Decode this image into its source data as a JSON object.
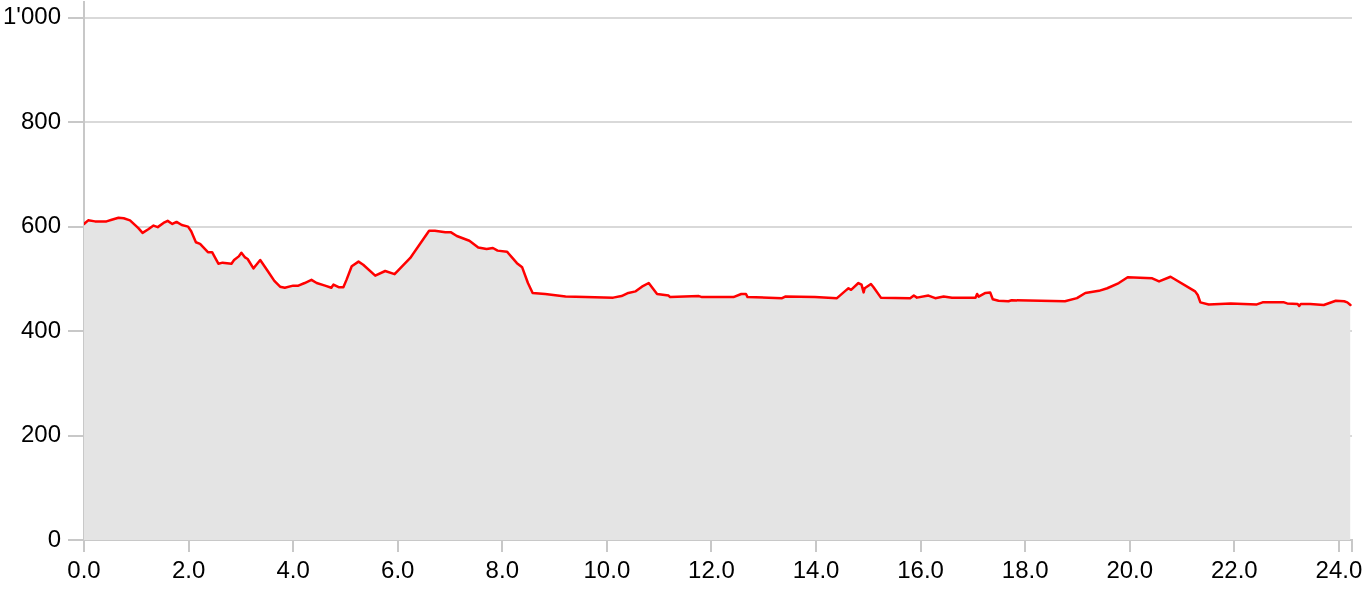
{
  "chart_data": {
    "type": "area",
    "color": "#ff0000",
    "marker": "none",
    "grid": "y",
    "xlim": [
      0,
      24.25
    ],
    "ylim": [
      0,
      1030
    ],
    "xticks": [
      {
        "value": 0,
        "label": "0.0"
      },
      {
        "value": 2,
        "label": "2.0"
      },
      {
        "value": 4,
        "label": "4.0"
      },
      {
        "value": 6,
        "label": "6.0"
      },
      {
        "value": 8,
        "label": "8.0"
      },
      {
        "value": 10,
        "label": "10.0"
      },
      {
        "value": 12,
        "label": "12.0"
      },
      {
        "value": 14,
        "label": "14.0"
      },
      {
        "value": 16,
        "label": "16.0"
      },
      {
        "value": 18,
        "label": "18.0"
      },
      {
        "value": 20,
        "label": "20.0"
      },
      {
        "value": 22,
        "label": "22.0"
      },
      {
        "value": 24,
        "label": "24.0"
      },
      {
        "value": 24.25,
        "label": null
      }
    ],
    "yticks": [
      0,
      200,
      400,
      600,
      800,
      {
        "value": 1000,
        "label": "1'000"
      }
    ],
    "x": [
      0.0,
      0.08,
      0.21,
      0.43,
      0.53,
      0.66,
      0.76,
      0.88,
      1.04,
      1.12,
      1.23,
      1.33,
      1.41,
      1.52,
      1.6,
      1.69,
      1.77,
      1.87,
      1.99,
      2.05,
      2.14,
      2.22,
      2.37,
      2.45,
      2.57,
      2.65,
      2.82,
      2.87,
      2.96,
      3.01,
      3.08,
      3.13,
      3.24,
      3.37,
      3.52,
      3.64,
      3.75,
      3.84,
      4.0,
      4.1,
      4.22,
      4.35,
      4.45,
      4.61,
      4.73,
      4.77,
      4.87,
      4.96,
      5.02,
      5.12,
      5.25,
      5.34,
      5.57,
      5.76,
      5.94,
      6.24,
      6.6,
      6.71,
      6.91,
      7.02,
      7.13,
      7.37,
      7.54,
      7.7,
      7.82,
      7.91,
      8.09,
      8.28,
      8.38,
      8.49,
      8.58,
      8.82,
      9.21,
      9.59,
      10.12,
      10.28,
      10.41,
      10.55,
      10.67,
      10.8,
      10.96,
      11.18,
      11.21,
      11.76,
      11.82,
      12.42,
      12.57,
      12.66,
      12.69,
      13.35,
      13.41,
      13.98,
      14.4,
      14.56,
      14.62,
      14.67,
      14.81,
      14.87,
      14.91,
      14.93,
      15.05,
      15.1,
      15.24,
      15.8,
      15.87,
      15.93,
      16.15,
      16.28,
      16.44,
      16.6,
      17.05,
      17.08,
      17.11,
      17.24,
      17.33,
      17.38,
      17.49,
      17.68,
      17.74,
      18.76,
      18.99,
      19.15,
      19.41,
      19.57,
      19.79,
      19.96,
      20.43,
      20.56,
      20.78,
      21.25,
      21.3,
      21.35,
      21.51,
      21.93,
      22.43,
      22.54,
      22.95,
      23.01,
      23.21,
      23.24,
      23.27,
      23.45,
      23.71,
      23.94,
      24.1,
      24.16,
      24.22
    ],
    "values": [
      605,
      612,
      610,
      610,
      613,
      617,
      616,
      612,
      597,
      588,
      595,
      602,
      599,
      607,
      611,
      605,
      609,
      603,
      600,
      591,
      570,
      567,
      551,
      551,
      529,
      531,
      529,
      536,
      543,
      550,
      541,
      538,
      520,
      536,
      514,
      496,
      485,
      483,
      487,
      487,
      492,
      498,
      492,
      487,
      483,
      489,
      484,
      484,
      498,
      524,
      533,
      527,
      506,
      515,
      509,
      540,
      592,
      592,
      589,
      589,
      582,
      573,
      560,
      557,
      559,
      554,
      552,
      530,
      522,
      492,
      473,
      471,
      466,
      465,
      464,
      467,
      473,
      476,
      485,
      492,
      471,
      468,
      465,
      467,
      465,
      465,
      471,
      471,
      465,
      463,
      466,
      465,
      463,
      477,
      482,
      479,
      492,
      489,
      474,
      482,
      490,
      484,
      464,
      463,
      468,
      464,
      468,
      463,
      466,
      464,
      464,
      471,
      466,
      473,
      474,
      461,
      458,
      457,
      459,
      457,
      463,
      473,
      477,
      482,
      492,
      503,
      501,
      495,
      504,
      476,
      469,
      455,
      451,
      453,
      451,
      455,
      455,
      453,
      452,
      448,
      452,
      452,
      450,
      458,
      457,
      455,
      450
    ]
  }
}
